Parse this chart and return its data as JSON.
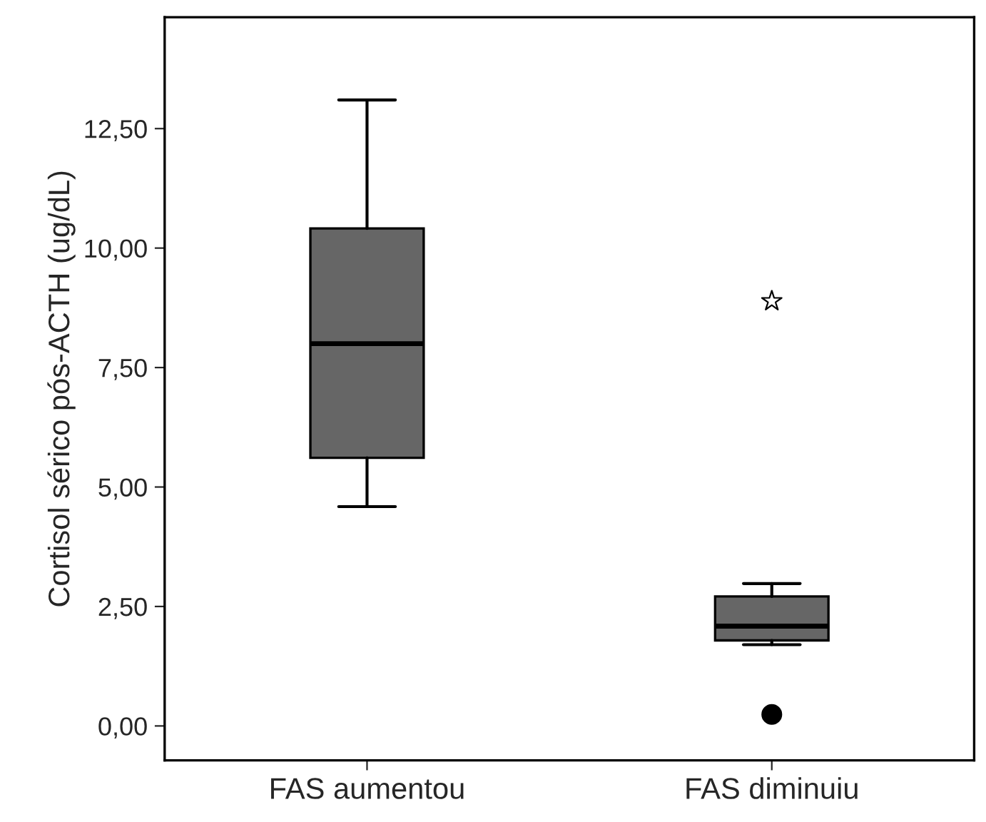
{
  "chart_data": {
    "type": "box",
    "ylabel": "Cortisol sérico pós-ACTH (ug/dL)",
    "categories": [
      "FAS aumentou",
      "FAS diminuiu"
    ],
    "boxes": [
      {
        "low": 4.59,
        "q1": 5.61,
        "median": 8.0,
        "q3": 10.41,
        "high": 13.1
      },
      {
        "low": 1.7,
        "q1": 1.79,
        "median": 2.09,
        "q3": 2.71,
        "high": 2.98,
        "outliers": [
          8.89,
          0.24
        ]
      }
    ],
    "color": "#666666",
    "ylim": [
      -0.72,
      14.83
    ],
    "yticks": [
      {
        "value": 0,
        "label": "0,00"
      },
      {
        "value": 2.5,
        "label": "2,50"
      },
      {
        "value": 5,
        "label": "5,00"
      },
      {
        "value": 7.5,
        "label": "7,50"
      },
      {
        "value": 10,
        "label": "10,00"
      },
      {
        "value": 12.5,
        "label": "12,50"
      }
    ],
    "grid": false
  }
}
